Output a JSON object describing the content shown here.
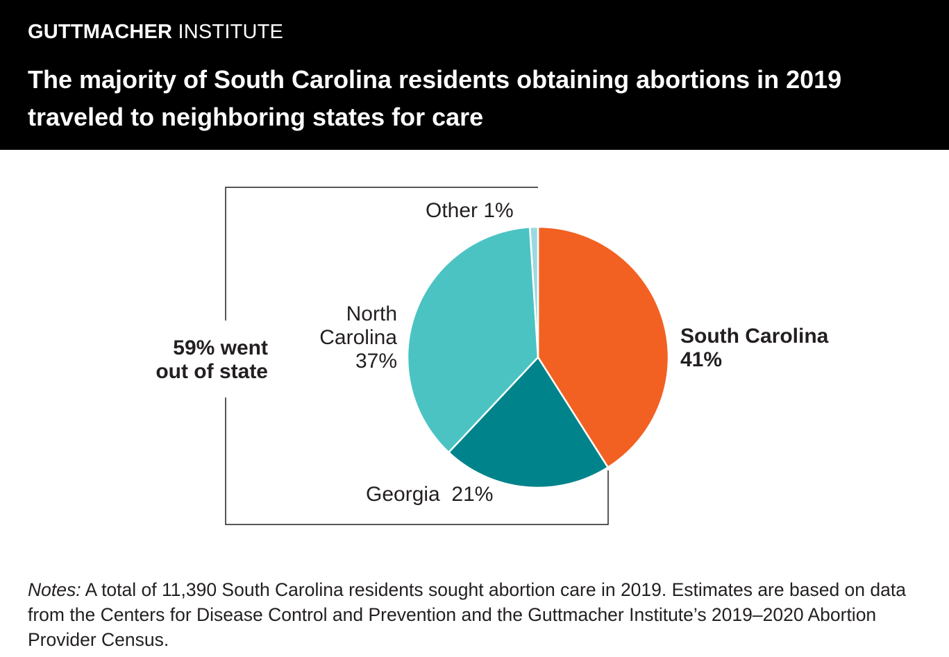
{
  "header": {
    "brand_bold": "GUTTMACHER",
    "brand_regular": "INSTITUTE",
    "title": "The majority of South Carolina residents obtaining abortions in 2019 traveled to neighboring states for care"
  },
  "chart_data": {
    "type": "pie",
    "title": "The majority of South Carolina residents obtaining abortions in 2019 traveled to neighboring states for care",
    "slices": [
      {
        "label": "South Carolina",
        "value": 41,
        "value_label": "41%",
        "color": "#f26122"
      },
      {
        "label": "Georgia",
        "value": 21,
        "value_label": "21%",
        "color": "#00838b"
      },
      {
        "label": "North Carolina",
        "value": 37,
        "value_label": "37%",
        "color": "#4bc3c3"
      },
      {
        "label": "Other",
        "value": 1,
        "value_label": "1%",
        "color": "#9bd9e1"
      }
    ],
    "start_angle_deg": 0,
    "direction": "clockwise",
    "bracket_annotation": {
      "line1": "59% went",
      "line2": "out of state",
      "covers": [
        "Georgia",
        "North Carolina",
        "Other"
      ]
    }
  },
  "labels": {
    "south_carolina_name": "South Carolina",
    "south_carolina_value": "41%",
    "georgia": "Georgia  21%",
    "north_carolina_line1": "North",
    "north_carolina_line2": "Carolina",
    "north_carolina_value": "37%",
    "other": "Other 1%"
  },
  "notes": {
    "label": "Notes:",
    "text": " A total of 11,390 South Carolina residents sought abortion care in 2019. Estimates are based on data from the Centers for Disease Control and Prevention and the Guttmacher Institute’s 2019–2020 Abortion Provider Census."
  }
}
